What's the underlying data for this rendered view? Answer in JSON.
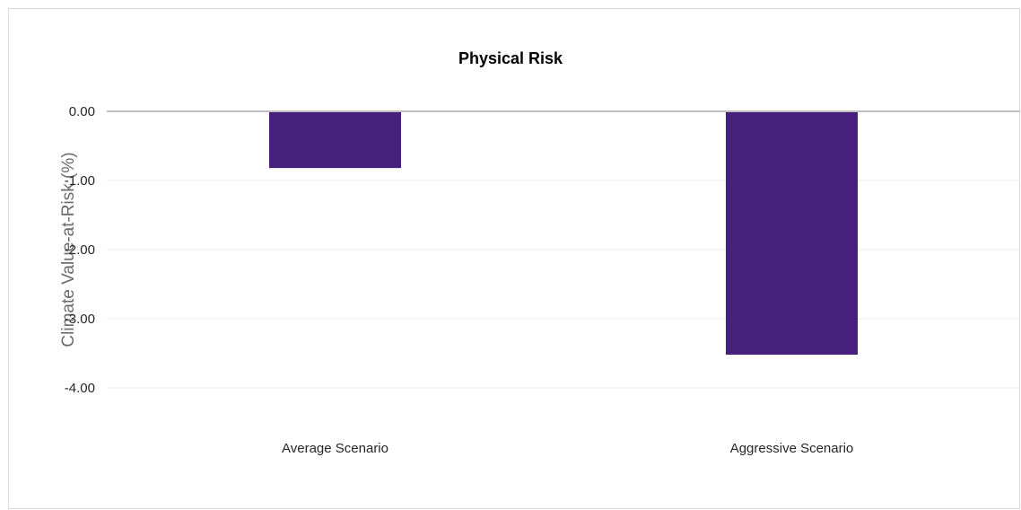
{
  "chart_data": {
    "type": "bar",
    "title": "Physical Risk",
    "ylabel": "Climate Value-at-Risk (%)",
    "xlabel": "",
    "categories": [
      "Average Scenario",
      "Aggressive Scenario"
    ],
    "values": [
      -0.82,
      -3.52
    ],
    "ylim": [
      -4.0,
      0.0
    ],
    "yticks": [
      0,
      -1,
      -2,
      -3,
      -4
    ],
    "ytick_labels": [
      "0.00",
      "-1.00",
      "-2.00",
      "-3.00",
      "-4.00"
    ],
    "bar_color": "#46207c",
    "grid": true,
    "legend": "none"
  }
}
